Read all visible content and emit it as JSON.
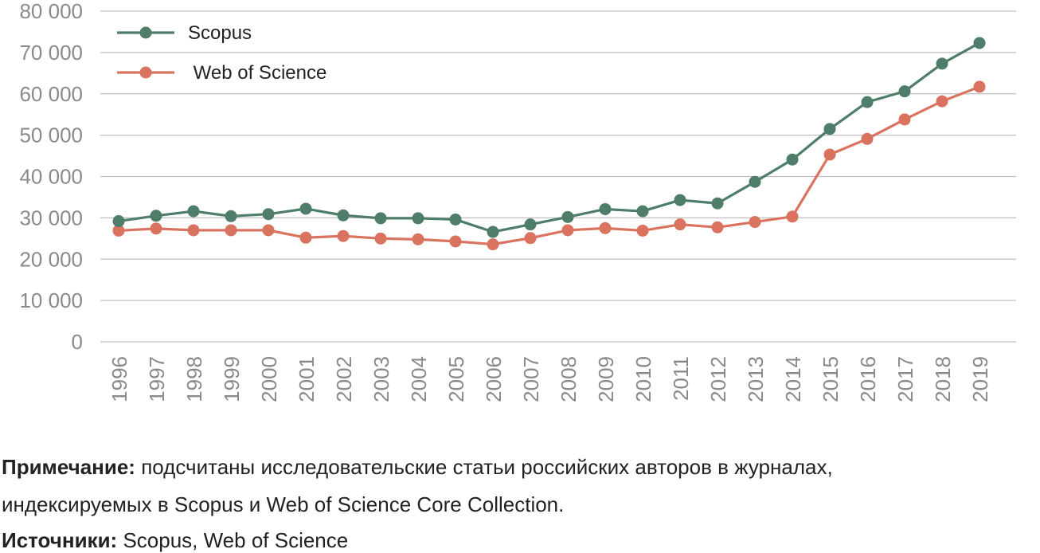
{
  "chart_data": {
    "type": "line",
    "title": "",
    "xlabel": "",
    "ylabel": "",
    "categories": [
      "1996",
      "1997",
      "1998",
      "1999",
      "2000",
      "2001",
      "2002",
      "2003",
      "2004",
      "2005",
      "2006",
      "2007",
      "2008",
      "2009",
      "2010",
      "2011",
      "2012",
      "2013",
      "2014",
      "2015",
      "2016",
      "2017",
      "2018",
      "2019"
    ],
    "ylim": [
      0,
      80000
    ],
    "yticks": [
      0,
      10000,
      20000,
      30000,
      40000,
      50000,
      60000,
      70000,
      80000
    ],
    "ytick_labels": [
      "0",
      "10 000",
      "20 000",
      "30 000",
      "40 000",
      "50 000",
      "60 000",
      "70 000",
      "80 000"
    ],
    "grid": true,
    "legend_position": "top-left",
    "series": [
      {
        "name": "Scopus",
        "color": "#4e7d69",
        "values": [
          29200,
          30500,
          31600,
          30400,
          30900,
          32200,
          30600,
          29900,
          29900,
          29600,
          26600,
          28400,
          30200,
          32100,
          31600,
          34300,
          33500,
          38700,
          44100,
          51500,
          58000,
          60600,
          67300,
          72300
        ]
      },
      {
        "name": " Web of Science",
        "color": "#d9725e",
        "values": [
          26900,
          27400,
          27000,
          27000,
          27000,
          25200,
          25600,
          25000,
          24800,
          24300,
          23600,
          25100,
          27000,
          27500,
          26900,
          28400,
          27700,
          29000,
          30300,
          45300,
          49100,
          53800,
          58200,
          61700
        ]
      }
    ]
  },
  "notes": {
    "note_label": "Примечание:",
    "note_text": " подсчитаны исследовательские статьи российских авторов в журналах,",
    "note_text2": "индексируемых в Scopus и Web of Science Core Collection.",
    "sources_label": "Источники:",
    "sources_text": " Scopus, Web of Science"
  }
}
